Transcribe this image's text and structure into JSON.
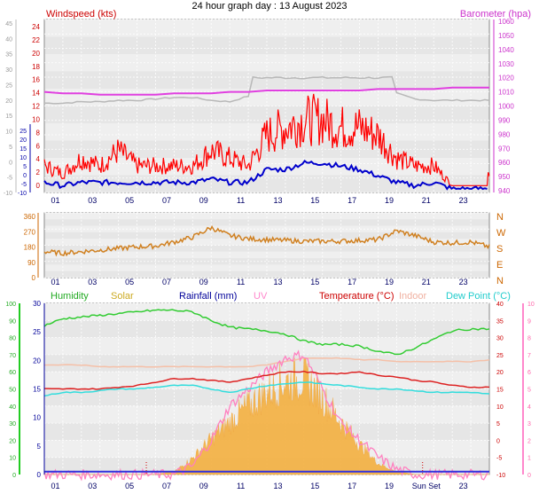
{
  "title": "24 hour graph day : 13 August 2023",
  "colors": {
    "wind_gust": "#ff0000",
    "wind_avg": "#0000cc",
    "barometer": "#e040e0",
    "barometer_grey": "#b8b8b8",
    "direction": "#d08020",
    "humidity": "#33cc33",
    "solar": "#f4b040",
    "rainfall": "#3333dd",
    "uv": "#ff80c0",
    "temperature": "#dd2222",
    "indoor": "#f5c0a8",
    "dewpoint": "#33dddd",
    "plot_bg": "#e8e8e8",
    "grid": "#ffffff"
  },
  "panel1": {
    "left_label": "Windspeed (kts)",
    "right_label": "Barometer (hpa)",
    "left_ticks": [
      "24",
      "22",
      "20",
      "18",
      "16",
      "14",
      "12",
      "10",
      "8",
      "6",
      "4",
      "2",
      "0"
    ],
    "right_ticks": [
      "1060",
      "1050",
      "1040",
      "1030",
      "1020",
      "1010",
      "1000",
      "990",
      "980",
      "970",
      "960",
      "950",
      "940"
    ],
    "left_axis_values": [
      "45",
      "40",
      "35",
      "30",
      "25",
      "20",
      "15",
      "10",
      "5",
      "0",
      "-5",
      "-10"
    ],
    "left_axis_values_label": "",
    "mid_axis_values": [
      "25",
      "20",
      "15",
      "10",
      "5",
      "0",
      "-5",
      "-10"
    ]
  },
  "panel2": {
    "left_ticks": [
      "360",
      "270",
      "180",
      "90",
      "0"
    ],
    "right_ticks": [
      "N",
      "W",
      "S",
      "E",
      "N"
    ]
  },
  "panel3": {
    "labels": {
      "humidity": "Humidity",
      "solar": "Solar",
      "rainfall": "Rainfall (mm)",
      "uv": "UV",
      "temperature": "Temperature (°C)",
      "indoor": "Indoor",
      "dewpoint": "Dew Point (°C)"
    },
    "humidity_ticks": [
      "100",
      "90",
      "80",
      "70",
      "60",
      "50",
      "40",
      "30",
      "20",
      "10",
      "0"
    ],
    "rain_ticks": [
      "30",
      "25",
      "20",
      "15",
      "10",
      "5",
      "0"
    ],
    "temp_ticks": [
      "40",
      "35",
      "30",
      "25",
      "20",
      "15",
      "10",
      "5",
      "0",
      "-5",
      "-10"
    ],
    "uv_ticks": [
      "10",
      "9",
      "8",
      "7",
      "6",
      "5",
      "4",
      "3",
      "2",
      "1",
      "0"
    ]
  },
  "x_ticks": [
    "01",
    "03",
    "05",
    "07",
    "09",
    "11",
    "13",
    "15",
    "17",
    "19",
    "21",
    "23"
  ],
  "x_ticks_bottom": [
    "01",
    "03",
    "05",
    "07",
    "09",
    "11",
    "13",
    "15",
    "17",
    "19",
    "Sun Set",
    "23"
  ],
  "sunrise_marker": "",
  "chart_data": [
    {
      "type": "line",
      "title": "",
      "xlabel": "",
      "ylabel": "Windspeed (kts)",
      "ylim": [
        0,
        25
      ],
      "y2label": "Barometer (hpa)",
      "y2lim": [
        940,
        1060
      ],
      "x": [
        0,
        1,
        2,
        3,
        4,
        5,
        6,
        7,
        8,
        9,
        10,
        11,
        12,
        13,
        14,
        15,
        16,
        17,
        18,
        19,
        20,
        21,
        22,
        23,
        24
      ],
      "series": [
        {
          "name": "",
          "axis": "left",
          "values": [
            3,
            2,
            4,
            3,
            5,
            3,
            3,
            3,
            3,
            5,
            4,
            3,
            7,
            8,
            9,
            9,
            8,
            8,
            7,
            4,
            3,
            3,
            0.5,
            0.5,
            2
          ]
        },
        {
          "name": "",
          "axis": "left",
          "values": [
            1,
            0.5,
            1,
            1,
            1,
            1,
            1,
            1,
            1,
            1.5,
            1,
            1,
            3,
            3,
            4,
            4,
            3.5,
            3,
            2,
            1,
            0.5,
            1,
            0,
            0,
            0
          ]
        },
        {
          "name": "",
          "axis": "right",
          "values": [
            1010,
            1009,
            1009,
            1008,
            1008,
            1008,
            1008,
            1009,
            1009,
            1009,
            1010,
            1010,
            1011,
            1011,
            1011,
            1011,
            1011,
            1011,
            1012,
            1012,
            1012,
            1012,
            1013,
            1013,
            1013
          ]
        }
      ]
    },
    {
      "type": "line",
      "title": "",
      "ylim": [
        0,
        360
      ],
      "x": [
        0,
        1,
        2,
        3,
        4,
        5,
        6,
        7,
        8,
        9,
        10,
        11,
        12,
        13,
        14,
        15,
        16,
        17,
        18,
        19,
        20,
        21,
        22,
        23,
        24
      ],
      "series": [
        {
          "name": "",
          "values": [
            140,
            130,
            140,
            150,
            160,
            170,
            175,
            200,
            230,
            290,
            240,
            220,
            215,
            210,
            205,
            205,
            205,
            210,
            215,
            270,
            240,
            200,
            195,
            200,
            170
          ]
        }
      ]
    },
    {
      "type": "line",
      "title": "",
      "x": [
        0,
        1,
        2,
        3,
        4,
        5,
        6,
        7,
        8,
        9,
        10,
        11,
        12,
        13,
        14,
        15,
        16,
        17,
        18,
        19,
        20,
        21,
        22,
        23,
        24
      ],
      "series": [
        {
          "name": "Humidity",
          "axis": "humidity",
          "values": [
            87,
            91,
            92,
            93,
            94,
            95,
            96,
            96,
            95,
            90,
            86,
            85,
            84,
            82,
            78,
            76,
            76,
            75,
            72,
            70,
            74,
            79,
            84,
            85,
            85
          ]
        },
        {
          "name": "Temperature (°C)",
          "axis": "temp",
          "values": [
            15,
            15,
            15,
            15,
            15.5,
            16,
            17,
            18,
            18,
            17.5,
            17,
            18,
            19,
            20,
            20,
            19.5,
            19.5,
            20,
            19,
            18.5,
            17.5,
            17,
            16,
            15.5,
            15.5
          ]
        },
        {
          "name": "Dew Point (°C)",
          "axis": "temp",
          "values": [
            13,
            14,
            14,
            14.5,
            15,
            15,
            15.5,
            16,
            16,
            15,
            14,
            15,
            16,
            16.5,
            17,
            16.5,
            16,
            15.5,
            15,
            15,
            14.5,
            14,
            14,
            14,
            13.5
          ]
        },
        {
          "name": "Indoor",
          "axis": "temp",
          "values": [
            22,
            22,
            22,
            21.5,
            21.5,
            21.5,
            21.5,
            21.5,
            21.5,
            21.5,
            21.5,
            21.5,
            22,
            23,
            24,
            24,
            24,
            23.5,
            23.5,
            23,
            23,
            23,
            23,
            23,
            23.5
          ]
        },
        {
          "name": "Solar",
          "axis": "solar",
          "values": [
            0,
            0,
            0,
            0,
            0,
            0,
            0,
            20,
            120,
            260,
            380,
            500,
            600,
            680,
            700,
            560,
            380,
            220,
            80,
            20,
            0,
            0,
            0,
            0,
            0
          ]
        },
        {
          "name": "UV",
          "axis": "uv",
          "values": [
            0,
            0,
            0,
            0,
            0,
            0,
            0,
            0,
            0.5,
            2,
            4,
            5,
            6,
            6.8,
            7,
            5,
            3,
            2,
            1,
            0.3,
            0,
            0,
            0,
            0,
            0
          ]
        },
        {
          "name": "Rainfall (mm)",
          "axis": "rain",
          "values": [
            0.5,
            0.5,
            0.5,
            0.5,
            0.5,
            0.5,
            0.5,
            0.5,
            0.5,
            0.5,
            0.5,
            0.5,
            0.5,
            0.5,
            0.5,
            0.5,
            0.5,
            0.5,
            0.5,
            0.5,
            0.5,
            0.5,
            0.5,
            0.5,
            0.5
          ]
        }
      ]
    }
  ]
}
